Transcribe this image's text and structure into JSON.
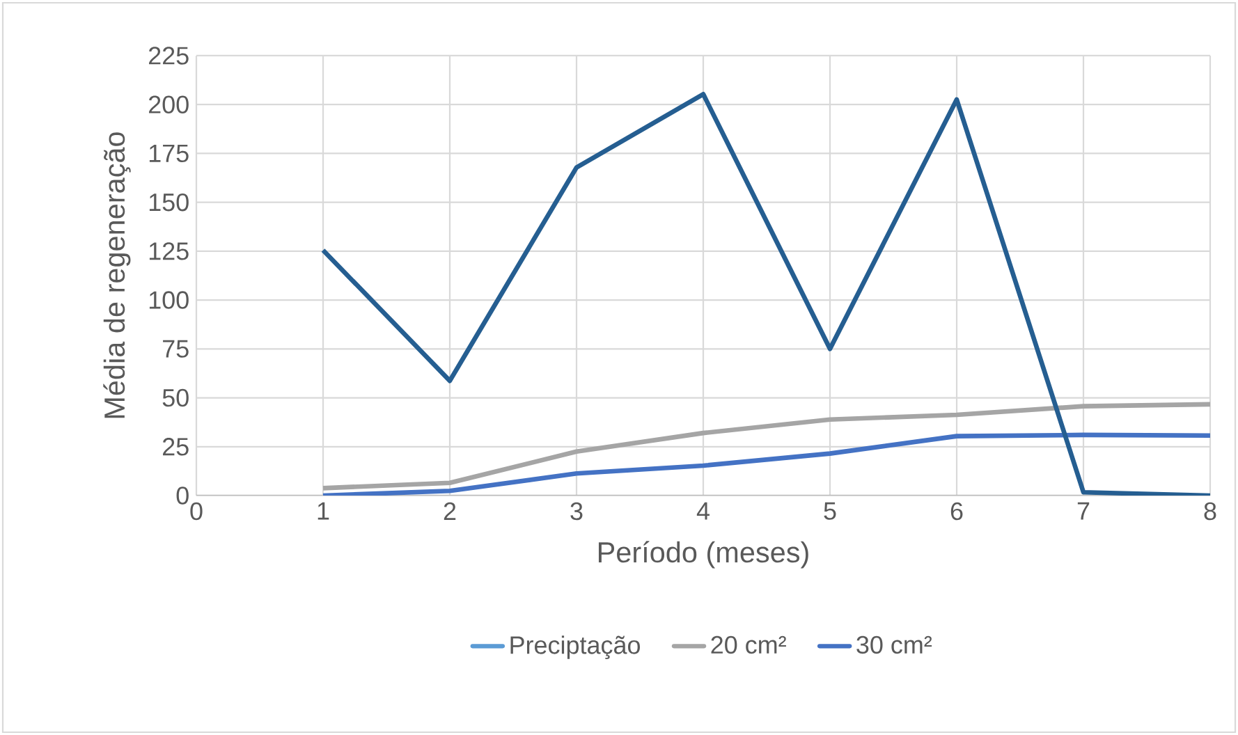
{
  "chart_data": {
    "type": "line",
    "xlabel": "Período (meses)",
    "ylabel": "Média de regeneração",
    "x": [
      1,
      2,
      3,
      4,
      5,
      6,
      7,
      8
    ],
    "series": [
      {
        "name": "Preciptação",
        "color": "#5b9bd5",
        "values": [
          null,
          null,
          null,
          null,
          null,
          null,
          null,
          null
        ]
      },
      {
        "name": "20 cm²",
        "color": "#a5a5a5",
        "values": [
          3.8,
          6.5,
          22.5,
          32,
          38.9,
          41.3,
          45.7,
          46.7
        ]
      },
      {
        "name": "30 cm²",
        "color": "#4472c4",
        "values": [
          0,
          2.4,
          11.3,
          15.3,
          21.5,
          30.4,
          31,
          30.7
        ]
      },
      {
        "color": "#255e91",
        "values": [
          125.5,
          58.7,
          167.8,
          205.3,
          75,
          202.6,
          1.7,
          0
        ]
      }
    ],
    "xlim": [
      0,
      8
    ],
    "xticks": [
      0,
      1,
      2,
      3,
      4,
      5,
      6,
      7,
      8
    ],
    "ylim": [
      0,
      225
    ],
    "yticks": [
      0,
      25,
      50,
      75,
      100,
      125,
      150,
      175,
      200,
      225
    ],
    "grid": true,
    "legend": "bottom",
    "marker": "none",
    "line_style": "solid"
  }
}
